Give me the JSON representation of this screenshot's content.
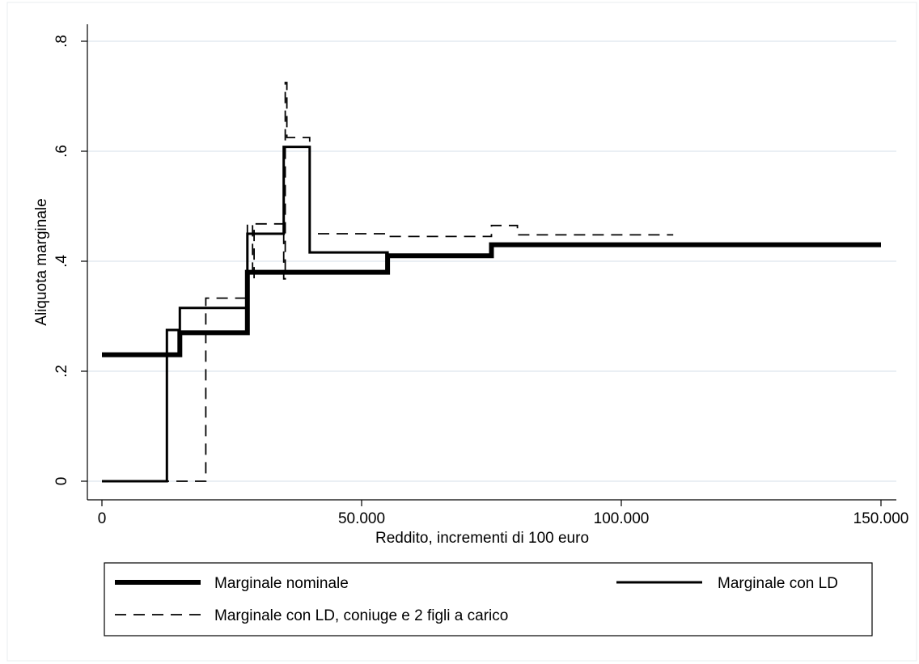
{
  "chart_data": {
    "type": "line",
    "title": "",
    "xlabel": "Reddito, incrementi di 100 euro",
    "ylabel": "Aliquota marginale",
    "xlim": [
      0,
      150000
    ],
    "ylim": [
      0,
      0.8
    ],
    "xticks": [
      {
        "value": 0,
        "label": "0"
      },
      {
        "value": 50000,
        "label": "50.000"
      },
      {
        "value": 100000,
        "label": "100.000"
      },
      {
        "value": 150000,
        "label": "150.000"
      }
    ],
    "yticks": [
      {
        "value": 0,
        "label": "0"
      },
      {
        "value": 0.2,
        "label": ".2"
      },
      {
        "value": 0.4,
        "label": ".4"
      },
      {
        "value": 0.6,
        "label": ".6"
      },
      {
        "value": 0.8,
        "label": ".8"
      }
    ],
    "grid": "horizontal",
    "legend_position": "bottom",
    "series": [
      {
        "name": "Marginale nominale",
        "style": "thick-solid",
        "color": "#000000",
        "points": [
          [
            0,
            0.23
          ],
          [
            15000,
            0.23
          ],
          [
            15000,
            0.27
          ],
          [
            28000,
            0.27
          ],
          [
            28000,
            0.38
          ],
          [
            55000,
            0.38
          ],
          [
            55000,
            0.41
          ],
          [
            75000,
            0.41
          ],
          [
            75000,
            0.43
          ],
          [
            150000,
            0.43
          ]
        ]
      },
      {
        "name": "Marginale con LD",
        "style": "solid",
        "color": "#000000",
        "points": [
          [
            0,
            0
          ],
          [
            12500,
            0
          ],
          [
            12500,
            0.275
          ],
          [
            15000,
            0.275
          ],
          [
            15000,
            0.315
          ],
          [
            28000,
            0.315
          ],
          [
            28000,
            0.45
          ],
          [
            35000,
            0.45
          ],
          [
            35000,
            0.608
          ],
          [
            40000,
            0.608
          ],
          [
            40000,
            0.416
          ],
          [
            55000,
            0.416
          ],
          [
            55000,
            0.41
          ],
          [
            75000,
            0.41
          ],
          [
            75000,
            0.43
          ],
          [
            150000,
            0.43
          ]
        ]
      },
      {
        "name": "Marginale con LD, coniuge e 2 figli a carico",
        "style": "dashed",
        "color": "#000000",
        "points": [
          [
            0,
            0
          ],
          [
            20000,
            0
          ],
          [
            20000,
            0.333
          ],
          [
            28000,
            0.333
          ],
          [
            28000,
            0.468
          ],
          [
            29000,
            0.468
          ],
          [
            29000,
            0.368
          ],
          [
            29300,
            0.368
          ],
          [
            29300,
            0.468
          ],
          [
            35000,
            0.468
          ],
          [
            35000,
            0.368
          ],
          [
            35300,
            0.368
          ],
          [
            35300,
            0.725
          ],
          [
            35600,
            0.725
          ],
          [
            35600,
            0.625
          ],
          [
            40000,
            0.625
          ],
          [
            40000,
            0.45
          ],
          [
            55000,
            0.45
          ],
          [
            55000,
            0.445
          ],
          [
            75000,
            0.445
          ],
          [
            75000,
            0.465
          ],
          [
            80000,
            0.465
          ],
          [
            80000,
            0.448
          ],
          [
            110000,
            0.448
          ]
        ]
      }
    ]
  }
}
